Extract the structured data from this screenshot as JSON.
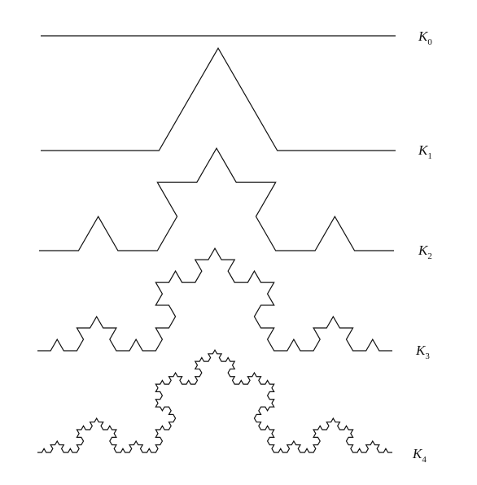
{
  "figure": {
    "description_hidden": false,
    "curves": [
      {
        "symbol": "K",
        "subscript": "0",
        "iteration": 0
      },
      {
        "symbol": "K",
        "subscript": "1",
        "iteration": 1
      },
      {
        "symbol": "K",
        "subscript": "2",
        "iteration": 2
      },
      {
        "symbol": "K",
        "subscript": "3",
        "iteration": 3
      },
      {
        "symbol": "K",
        "subscript": "4",
        "iteration": 4
      }
    ],
    "colors": {
      "stroke": "#111111",
      "background": "#ffffff"
    }
  }
}
